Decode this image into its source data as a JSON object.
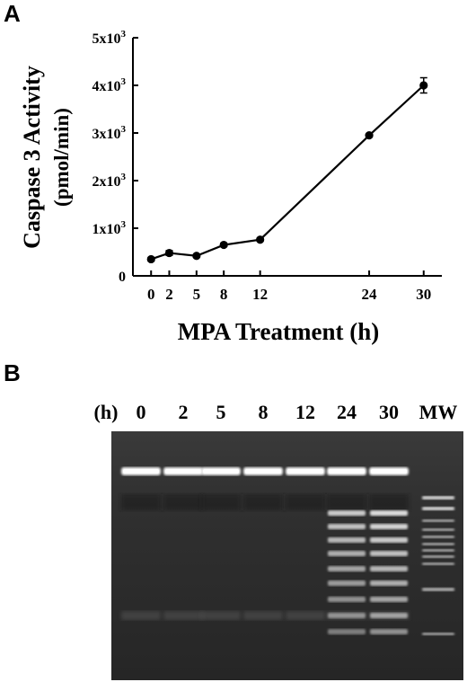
{
  "panels": {
    "a_label": "A",
    "b_label": "B"
  },
  "chart_data": {
    "type": "line",
    "x": [
      0,
      2,
      5,
      8,
      12,
      24,
      30
    ],
    "y": [
      350,
      480,
      420,
      650,
      760,
      2950,
      4000
    ],
    "y_err": [
      30,
      50,
      30,
      30,
      30,
      30,
      160
    ],
    "xlabel": "MPA Treatment (h)",
    "ylabel": "Caspase 3 Activity",
    "ylabel_unit": "(pmol/min)",
    "x_ticks": [
      "0",
      "2",
      "5",
      "8",
      "12",
      "24",
      "30"
    ],
    "y_ticks": [
      {
        "value": 0,
        "mantissa": "0",
        "exp": ""
      },
      {
        "value": 1000,
        "mantissa": "1x10",
        "exp": "3"
      },
      {
        "value": 2000,
        "mantissa": "2x10",
        "exp": "3"
      },
      {
        "value": 3000,
        "mantissa": "3x10",
        "exp": "3"
      },
      {
        "value": 4000,
        "mantissa": "4x10",
        "exp": "3"
      },
      {
        "value": 5000,
        "mantissa": "5x10",
        "exp": "3"
      }
    ],
    "ylim": [
      0,
      5000
    ],
    "grid": false
  },
  "gel": {
    "unit_label": "(h)",
    "lanes": [
      "0",
      "2",
      "5",
      "8",
      "12",
      "24",
      "30",
      "MW"
    ]
  }
}
